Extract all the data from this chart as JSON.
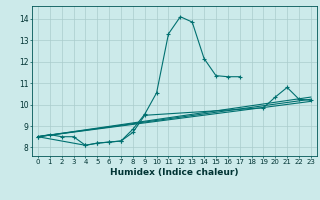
{
  "xlabel": "Humidex (Indice chaleur)",
  "background_color": "#cceaea",
  "grid_color": "#aacccc",
  "line_color": "#007070",
  "xlim": [
    -0.5,
    23.5
  ],
  "ylim": [
    7.6,
    14.6
  ],
  "xticks": [
    0,
    1,
    2,
    3,
    4,
    5,
    6,
    7,
    8,
    9,
    10,
    11,
    12,
    13,
    14,
    15,
    16,
    17,
    18,
    19,
    20,
    21,
    22,
    23
  ],
  "yticks": [
    8,
    9,
    10,
    11,
    12,
    13,
    14
  ],
  "line_spike": {
    "x": [
      0,
      1,
      2,
      3,
      4,
      5,
      6,
      7,
      8,
      9,
      10,
      11,
      12,
      13,
      14,
      15,
      16,
      17
    ],
    "y": [
      8.5,
      8.6,
      8.5,
      8.5,
      8.1,
      8.2,
      8.25,
      8.3,
      8.85,
      9.55,
      10.55,
      13.3,
      14.1,
      13.85,
      12.15,
      11.35,
      11.3,
      11.3
    ]
  },
  "line_flat1": {
    "x": [
      0,
      23
    ],
    "y": [
      8.5,
      10.15
    ]
  },
  "line_flat2": {
    "x": [
      0,
      23
    ],
    "y": [
      8.5,
      10.25
    ]
  },
  "line_flat3": {
    "x": [
      0,
      23
    ],
    "y": [
      8.5,
      10.35
    ]
  },
  "line_late": {
    "x": [
      0,
      4,
      5,
      6,
      7,
      8,
      9,
      19,
      20,
      21,
      22,
      23
    ],
    "y": [
      8.5,
      8.1,
      8.2,
      8.25,
      8.3,
      8.7,
      9.5,
      9.85,
      10.35,
      10.8,
      10.25,
      10.2
    ]
  }
}
